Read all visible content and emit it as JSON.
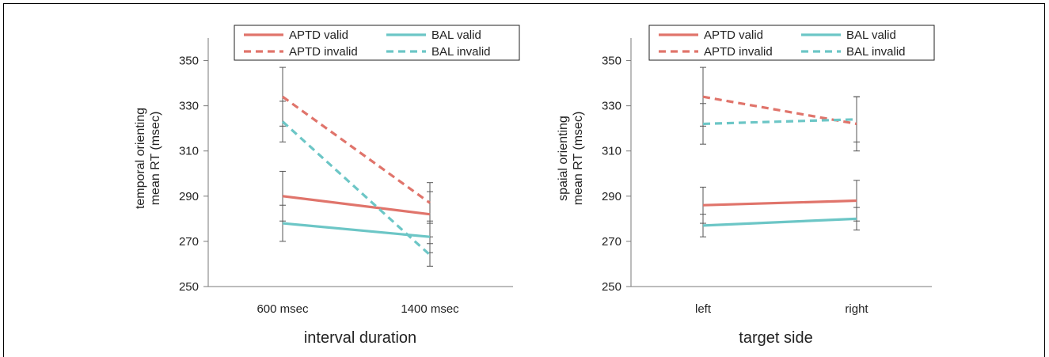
{
  "colors": {
    "aptd": "#e0746b",
    "bal": "#6cc6c6",
    "axis": "#7a7a7a",
    "error": "#555555"
  },
  "chart_data": [
    {
      "type": "line",
      "xlabel": "interval duration",
      "ylabel_lines": [
        "temporal orienting",
        "mean RT (msec)"
      ],
      "categories": [
        "600 msec",
        "1400 msec"
      ],
      "ylim": [
        250,
        360
      ],
      "yticks": [
        250,
        270,
        290,
        310,
        330,
        350
      ],
      "grid": false,
      "legend_position": "top",
      "series": [
        {
          "name": "APTD valid",
          "color_key": "aptd",
          "dashed": false,
          "values": [
            290,
            282
          ],
          "errors": [
            11,
            10
          ]
        },
        {
          "name": "BAL valid",
          "color_key": "bal",
          "dashed": false,
          "values": [
            278,
            272
          ],
          "errors": [
            8,
            7
          ]
        },
        {
          "name": "APTD invalid",
          "color_key": "aptd",
          "dashed": true,
          "values": [
            334,
            287
          ],
          "errors": [
            13,
            9
          ]
        },
        {
          "name": "BAL invalid",
          "color_key": "bal",
          "dashed": true,
          "values": [
            323,
            264
          ],
          "errors": [
            9,
            5
          ]
        }
      ]
    },
    {
      "type": "line",
      "xlabel": "target side",
      "ylabel_lines": [
        "spaial orienting",
        "mean RT (msec)"
      ],
      "categories": [
        "left",
        "right"
      ],
      "ylim": [
        250,
        360
      ],
      "yticks": [
        250,
        270,
        290,
        310,
        330,
        350
      ],
      "grid": false,
      "legend_position": "top",
      "series": [
        {
          "name": "APTD valid",
          "color_key": "aptd",
          "dashed": false,
          "values": [
            286,
            288
          ],
          "errors": [
            8,
            9
          ]
        },
        {
          "name": "BAL valid",
          "color_key": "bal",
          "dashed": false,
          "values": [
            277,
            280
          ],
          "errors": [
            5,
            5
          ]
        },
        {
          "name": "APTD invalid",
          "color_key": "aptd",
          "dashed": true,
          "values": [
            334,
            322
          ],
          "errors": [
            13,
            12
          ]
        },
        {
          "name": "BAL invalid",
          "color_key": "bal",
          "dashed": true,
          "values": [
            322,
            324
          ],
          "errors": [
            9,
            10
          ]
        }
      ]
    }
  ]
}
